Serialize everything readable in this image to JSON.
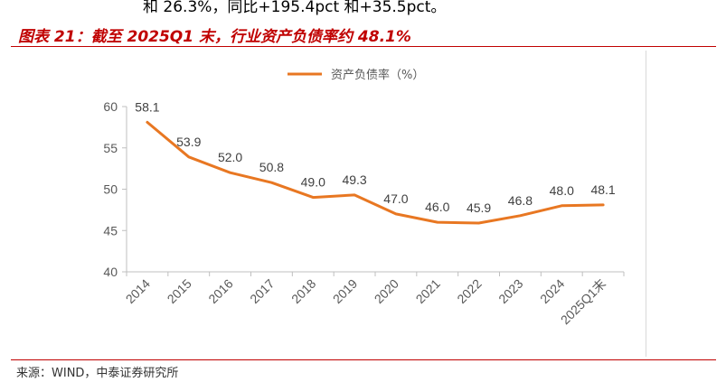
{
  "header": {
    "top_text": "和 26.3%，同比+195.4pct 和+35.5pct。",
    "figure_title": "图表 21：截至 2025Q1 末，行业资产负债率约 48.1%"
  },
  "footer": {
    "source": "来源：WIND，中泰证券研究所"
  },
  "colors": {
    "line": "#e87722",
    "title": "#c00000"
  },
  "chart_data": {
    "type": "line",
    "categories": [
      "2014",
      "2015",
      "2016",
      "2017",
      "2018",
      "2019",
      "2020",
      "2021",
      "2022",
      "2023",
      "2024",
      "2025Q1末"
    ],
    "series": [
      {
        "name": "资产负债率（%）",
        "values": [
          58.1,
          53.9,
          52.0,
          50.8,
          49.0,
          49.3,
          47.0,
          46.0,
          45.9,
          46.8,
          48.0,
          48.1
        ]
      }
    ],
    "data_labels": [
      "58.1",
      "53.9",
      "52.0",
      "50.8",
      "49.0",
      "49.3",
      "47.0",
      "46.0",
      "45.9",
      "46.8",
      "48.0",
      "48.1"
    ],
    "yticks": [
      "40",
      "45",
      "50",
      "55",
      "60"
    ],
    "ylim": [
      40,
      60
    ],
    "legend_position": "top",
    "grid": false
  }
}
